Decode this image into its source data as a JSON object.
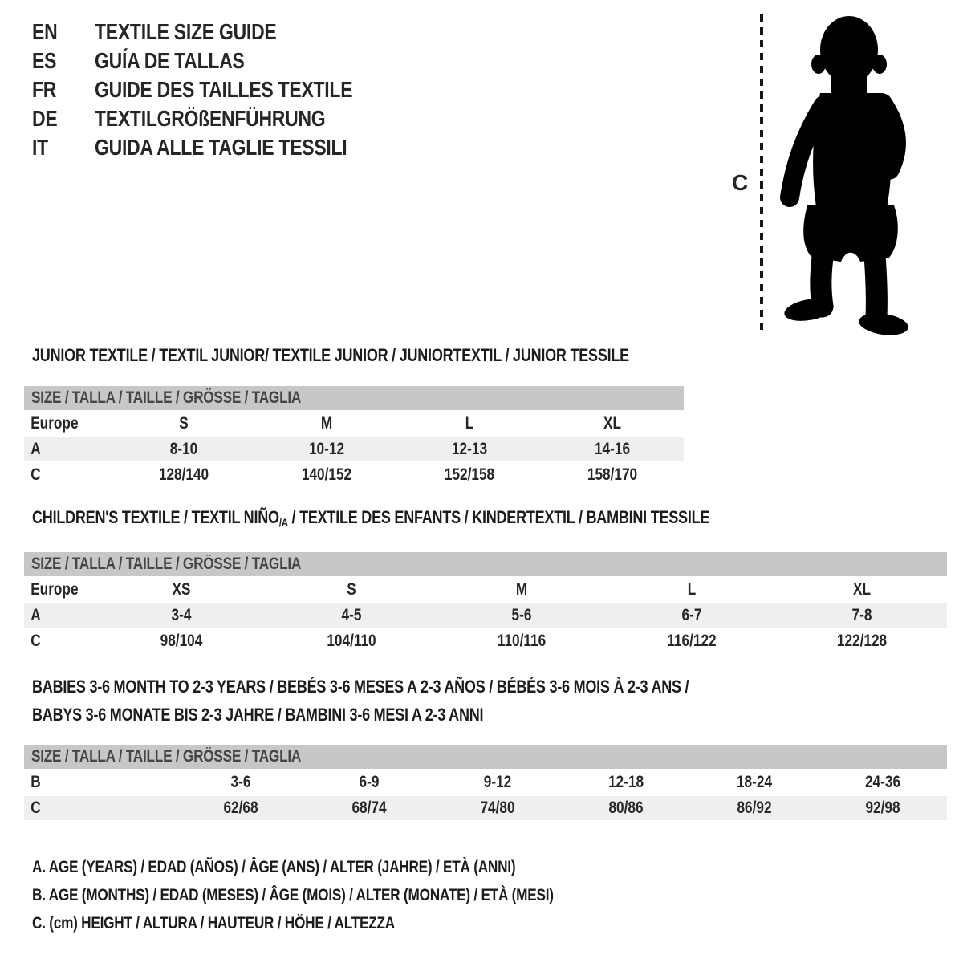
{
  "colors": {
    "table_header_bg": "#c7c7c7",
    "row_shaded_bg": "#efefef",
    "text": "#262626",
    "silhouette": "#000000"
  },
  "languages": [
    {
      "code": "EN",
      "label": "TEXTILE SIZE GUIDE"
    },
    {
      "code": "ES",
      "label": "GUÍA DE TALLAS"
    },
    {
      "code": "FR",
      "label": "GUIDE DES TAILLES TEXTILE"
    },
    {
      "code": "DE",
      "label": "TEXTILGRÖßENFÜHRUNG"
    },
    {
      "code": "IT",
      "label": "GUIDA ALLE TAGLIE TESSILI"
    }
  ],
  "figure": {
    "icon": "toddler-silhouette",
    "measure_label": "C"
  },
  "sections": [
    {
      "id": "junior",
      "title_lines": [
        {
          "pre": "JUNIOR TEXTILE / TEXTIL JUNIOR/ TEXTILE JUNIOR / JUNIORTEXTIL / JUNIOR TESSILE",
          "sub": "",
          "post": ""
        }
      ],
      "size_header": "SIZE / TALLA / TAILLE / GRÖSSE / TAGLIA",
      "rows": [
        {
          "label": "Europe",
          "shaded": false,
          "cells": [
            "S",
            "M",
            "L",
            "XL"
          ]
        },
        {
          "label": "A",
          "shaded": true,
          "cells": [
            "8-10",
            "10-12",
            "12-13",
            "14-16"
          ]
        },
        {
          "label": "C",
          "shaded": false,
          "cells": [
            "128/140",
            "140/152",
            "152/158",
            "158/170"
          ]
        }
      ]
    },
    {
      "id": "children",
      "title_lines": [
        {
          "pre": "CHILDREN'S TEXTILE / TEXTIL NIÑO",
          "sub": "/A",
          "post": " / TEXTILE DES ENFANTS / KINDERTEXTIL / BAMBINI TESSILE"
        }
      ],
      "size_header": "SIZE / TALLA / TAILLE / GRÖSSE / TAGLIA",
      "rows": [
        {
          "label": "Europe",
          "shaded": false,
          "cells": [
            "XS",
            "S",
            "M",
            "L",
            "XL"
          ]
        },
        {
          "label": "A",
          "shaded": true,
          "cells": [
            "3-4",
            "4-5",
            "5-6",
            "6-7",
            "7-8"
          ]
        },
        {
          "label": "C",
          "shaded": false,
          "cells": [
            "98/104",
            "104/110",
            "110/116",
            "116/122",
            "122/128"
          ]
        }
      ]
    },
    {
      "id": "babies",
      "title_lines": [
        {
          "pre": "BABIES 3-6 MONTH TO 2-3 YEARS / BEBÉS 3-6 MESES A 2-3 AÑOS / BÉBÉS 3-6 MOIS À 2-3 ANS /",
          "sub": "",
          "post": ""
        },
        {
          "pre": "BABYS 3-6 MONATE BIS 2-3 JAHRE / BAMBINI 3-6 MESI A 2-3 ANNI",
          "sub": "",
          "post": ""
        }
      ],
      "size_header": "SIZE / TALLA / TAILLE / GRÖSSE / TAGLIA",
      "rows": [
        {
          "label": "B",
          "shaded": false,
          "cells": [
            "3-6",
            "6-9",
            "9-12",
            "12-18",
            "18-24",
            "24-36"
          ]
        },
        {
          "label": "C",
          "shaded": true,
          "cells": [
            "62/68",
            "68/74",
            "74/80",
            "80/86",
            "86/92",
            "92/98"
          ]
        }
      ]
    }
  ],
  "legend": [
    "A. AGE (YEARS) / EDAD (AÑOS) / ÂGE (ANS) / ALTER (JAHRE) / ETÀ (ANNI)",
    "B. AGE (MONTHS) / EDAD (MESES) / ÂGE (MOIS) / ALTER (MONATE) / ETÀ (MESI)",
    "C. (cm) HEIGHT / ALTURA / HAUTEUR / HÖHE / ALTEZZA"
  ]
}
